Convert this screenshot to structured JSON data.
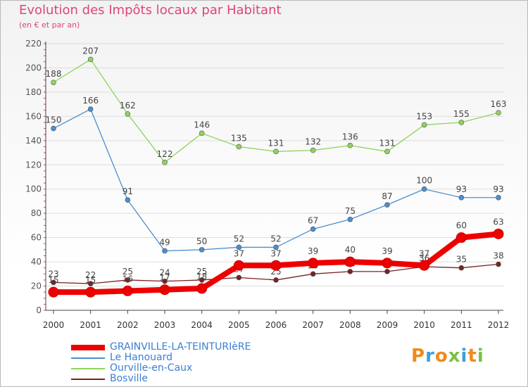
{
  "chart_data": {
    "type": "line",
    "title": "Evolution des Impôts locaux par Habitant",
    "subtitle": "(en € et par an)",
    "x": [
      "2000",
      "2001",
      "2002",
      "2003",
      "2004",
      "2005",
      "2006",
      "2007",
      "2008",
      "2009",
      "2010",
      "2011",
      "2012"
    ],
    "ylim": [
      0,
      220
    ],
    "yticks": [
      "0",
      "20",
      "40",
      "60",
      "80",
      "100",
      "120",
      "140",
      "160",
      "180",
      "200",
      "220"
    ],
    "series": [
      {
        "name": "Ourville-en-Caux",
        "color": "#8fd45c",
        "values": [
          188,
          207,
          162,
          122,
          146,
          135,
          131,
          132,
          136,
          131,
          153,
          155,
          163
        ]
      },
      {
        "name": "Le Hanouard",
        "color": "#4a8fcf",
        "values": [
          150,
          166,
          91,
          49,
          50,
          52,
          52,
          67,
          75,
          87,
          100,
          93,
          93
        ]
      },
      {
        "name": "Bosville",
        "color": "#7a2222",
        "values": [
          23,
          22,
          25,
          24,
          25,
          27,
          25,
          30,
          32,
          32,
          36,
          35,
          38
        ]
      },
      {
        "name": "GRAINVILLE-LA-TEINTURIèRE",
        "color": "#ee0000",
        "values": [
          15,
          15,
          16,
          17,
          18,
          37,
          37,
          39,
          40,
          39,
          37,
          60,
          63
        ]
      }
    ],
    "legend": [
      {
        "name": "GRAINVILLE-LA-TEINTURIèRE",
        "color": "#ee0000"
      },
      {
        "name": "Le Hanouard",
        "color": "#4a8fcf"
      },
      {
        "name": "Ourville-en-Caux",
        "color": "#8fd45c"
      },
      {
        "name": "Bosville",
        "color": "#7a2222"
      }
    ]
  },
  "logo": {
    "letters": [
      "P",
      "r",
      "o",
      "x",
      "i",
      "t",
      "i"
    ],
    "colors": [
      "#f08a1c",
      "#3aa0dc",
      "#f08a1c",
      "#7ac143",
      "#3aa0dc",
      "#f08a1c",
      "#7ac143"
    ]
  }
}
